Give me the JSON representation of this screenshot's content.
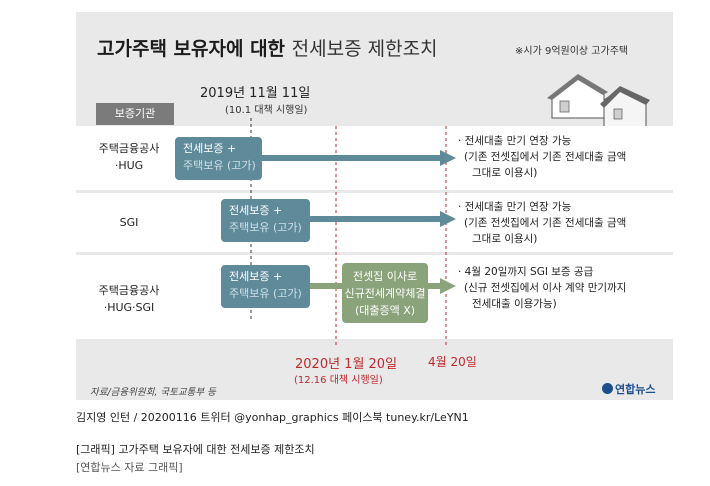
{
  "title": {
    "bold": "고가주택 보유자에 대한",
    "light": "전세보증 제한조치"
  },
  "note": "※시가 9억원이상 고가주택",
  "date_top": {
    "main": "2019년 11월 11일",
    "sub": "(10.1 대책 시행일)"
  },
  "org_header": "보증기관",
  "rows": [
    {
      "label": [
        "주택금융공사",
        "·HUG"
      ],
      "box": [
        "전세보증 +",
        "주택보유 (고가)"
      ],
      "right": [
        "· 전세대출 만기 연장 가능",
        "(기존 전셋집에서 기존 전세대출 금액",
        "그대로 이용시)"
      ]
    },
    {
      "label": [
        "SGI"
      ],
      "box": [
        "전세보증 +",
        "주택보유 (고가)"
      ],
      "right": [
        "· 전세대출 만기 연장 가능",
        "(기존 전셋집에서 기존 전세대출 금액",
        "그대로 이용시)"
      ]
    },
    {
      "label": [
        "주택금융공사",
        "·HUG·SGI"
      ],
      "box": [
        "전세보증 +",
        "주택보유 (고가)"
      ],
      "green": [
        "전셋집 이사로",
        "신규전세계약체결",
        "(대출증액 X)"
      ],
      "right": [
        "· 4월 20일까지 SGI 보증 공급",
        "(신규 전셋집에서 이사 계약 만기까지",
        "전세대출 이용가능)"
      ]
    }
  ],
  "date_bottom": {
    "main": "2020년 1월 20일",
    "sub": "(12.16 대책 시행일)",
    "second": "4월 20일"
  },
  "source": "자료/금융위원회, 국토교통부 등",
  "logo": "연합뉴스",
  "credit": "김지영 인턴 / 20200116 트위터 @yonhap_graphics 페이스북 tuney.kr/LeYN1",
  "caption1": "[그래픽] 고가주택 보유자에 대한 전세보증 제한조치",
  "caption2": "[연합뉴스 자료 그래픽]",
  "colors": {
    "panel": "#e9e9e9",
    "box_blue": "#5f8a9a",
    "box_green": "#8aa37a",
    "accent_red": "#c0282d",
    "arrow": "#5f8a9a"
  }
}
